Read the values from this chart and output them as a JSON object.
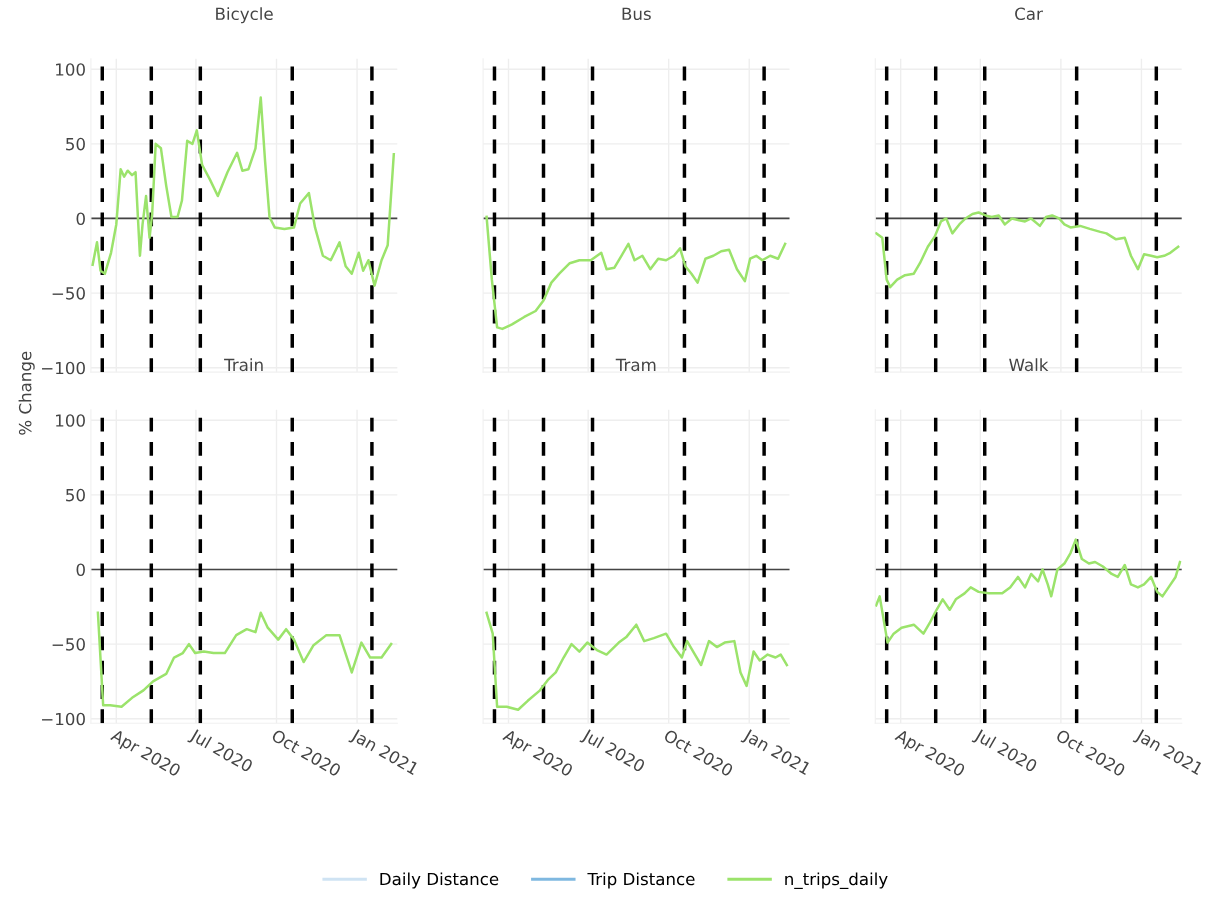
{
  "chart_data": [
    {
      "type": "line",
      "title": "Bicycle",
      "ylabel": "% Change",
      "xlim": [
        "2020-03-03",
        "2021-02-16"
      ],
      "ylim": [
        -103,
        107
      ],
      "xticks": [
        {
          "value": "2020-04-01",
          "label": null
        },
        {
          "value": "2020-07-01",
          "label": null
        },
        {
          "value": "2020-10-01",
          "label": null
        },
        {
          "value": "2021-01-01",
          "label": null
        }
      ],
      "yticks": [
        -100,
        -50,
        0,
        50,
        100
      ],
      "tick_labels": "y",
      "grid": true,
      "legend": "bottom",
      "line_style": "solid",
      "marker": "none",
      "ref_lines": [
        {
          "axis": "y",
          "value": 0,
          "color": "#444444",
          "line_style": "solid"
        },
        {
          "axis": "x",
          "value": "2020-03-16",
          "color": "#000000",
          "line_style": "dashed"
        },
        {
          "axis": "x",
          "value": "2020-05-11",
          "color": "#000000",
          "line_style": "dashed"
        },
        {
          "axis": "x",
          "value": "2020-07-06",
          "color": "#000000",
          "line_style": "dashed"
        },
        {
          "axis": "x",
          "value": "2020-10-19",
          "color": "#000000",
          "line_style": "dashed"
        },
        {
          "axis": "x",
          "value": "2021-01-18",
          "color": "#000000",
          "line_style": "dashed"
        }
      ],
      "series": [
        {
          "name": "Daily Distance",
          "color": "#cfe3f3"
        },
        {
          "name": "Trip Distance",
          "color": "#7fb8e0"
        },
        {
          "name": "n_trips_daily",
          "color": "#9be36b",
          "x": [
            "2020-03-05",
            "2020-03-10",
            "2020-03-14",
            "2020-03-19",
            "2020-03-26",
            "2020-04-01",
            "2020-04-06",
            "2020-04-10",
            "2020-04-14",
            "2020-04-19",
            "2020-04-23",
            "2020-04-28",
            "2020-05-01",
            "2020-05-05",
            "2020-05-09",
            "2020-05-12",
            "2020-05-16",
            "2020-05-22",
            "2020-05-28",
            "2020-06-03",
            "2020-06-10",
            "2020-06-15",
            "2020-06-21",
            "2020-06-27",
            "2020-07-02",
            "2020-07-08",
            "2020-07-17",
            "2020-07-26",
            "2020-08-06",
            "2020-08-17",
            "2020-08-23",
            "2020-08-30",
            "2020-09-07",
            "2020-09-13",
            "2020-09-18",
            "2020-09-23",
            "2020-09-29",
            "2020-10-10",
            "2020-10-21",
            "2020-10-28",
            "2020-11-07",
            "2020-11-14",
            "2020-11-23",
            "2020-12-02",
            "2020-12-12",
            "2020-12-19",
            "2020-12-26",
            "2021-01-03",
            "2021-01-08",
            "2021-01-14",
            "2021-01-21",
            "2021-01-29",
            "2021-02-05",
            "2021-02-12"
          ],
          "values": [
            -31,
            -16,
            -35,
            -37,
            -23,
            -4,
            33,
            28,
            32,
            29,
            31,
            -25,
            -4,
            15,
            -13,
            3,
            50,
            47,
            22,
            1,
            1,
            12,
            52,
            50,
            59,
            36,
            26,
            15,
            31,
            44,
            32,
            33,
            47,
            81,
            38,
            1,
            -6,
            -7,
            -6,
            10,
            17,
            -6,
            -25,
            -28,
            -16,
            -32,
            -37,
            -23,
            -35,
            -28,
            -45,
            -28,
            -18,
            43
          ]
        }
      ]
    },
    {
      "type": "line",
      "title": "Bus",
      "xlim": [
        "2020-03-03",
        "2021-02-16"
      ],
      "ylim": [
        -103,
        107
      ],
      "xticks": [
        {
          "value": "2020-04-01",
          "label": null
        },
        {
          "value": "2020-07-01",
          "label": null
        },
        {
          "value": "2020-10-01",
          "label": null
        },
        {
          "value": "2021-01-01",
          "label": null
        }
      ],
      "yticks": [
        {
          "value": -100,
          "label": null
        },
        {
          "value": -50,
          "label": null
        },
        {
          "value": 0,
          "label": null
        },
        {
          "value": 50,
          "label": null
        },
        {
          "value": 100,
          "label": null
        }
      ],
      "tick_labels": false,
      "grid": true,
      "line_style": "solid",
      "marker": "none",
      "ref_lines": [
        {
          "axis": "y",
          "value": 0,
          "color": "#444444",
          "line_style": "solid"
        },
        {
          "axis": "x",
          "value": "2020-03-16",
          "color": "#000000",
          "line_style": "dashed"
        },
        {
          "axis": "x",
          "value": "2020-05-11",
          "color": "#000000",
          "line_style": "dashed"
        },
        {
          "axis": "x",
          "value": "2020-07-06",
          "color": "#000000",
          "line_style": "dashed"
        },
        {
          "axis": "x",
          "value": "2020-10-19",
          "color": "#000000",
          "line_style": "dashed"
        },
        {
          "axis": "x",
          "value": "2021-01-18",
          "color": "#000000",
          "line_style": "dashed"
        }
      ],
      "series": [
        {
          "color": "#9be36b",
          "x": [
            "2020-03-07",
            "2020-03-13",
            "2020-03-19",
            "2020-03-25",
            "2020-04-05",
            "2020-04-19",
            "2020-05-02",
            "2020-05-11",
            "2020-05-20",
            "2020-05-29",
            "2020-06-10",
            "2020-06-21",
            "2020-07-04",
            "2020-07-16",
            "2020-07-22",
            "2020-07-31",
            "2020-08-08",
            "2020-08-16",
            "2020-08-23",
            "2020-09-01",
            "2020-09-10",
            "2020-09-19",
            "2020-09-28",
            "2020-10-07",
            "2020-10-14",
            "2020-10-20",
            "2020-10-27",
            "2020-11-03",
            "2020-11-12",
            "2020-11-21",
            "2020-11-30",
            "2020-12-09",
            "2020-12-18",
            "2020-12-27",
            "2021-01-02",
            "2021-01-09",
            "2021-01-16",
            "2021-01-25",
            "2021-02-03",
            "2021-02-11"
          ],
          "values": [
            1,
            -41,
            -73,
            -74,
            -71,
            -66,
            -62,
            -55,
            -43,
            -37,
            -30,
            -28,
            -28,
            -23,
            -34,
            -33,
            -25,
            -17,
            -28,
            -25,
            -34,
            -27,
            -28,
            -25,
            -20,
            -32,
            -37,
            -43,
            -27,
            -25,
            -22,
            -21,
            -34,
            -42,
            -27,
            -25,
            -28,
            -25,
            -27,
            -17
          ]
        }
      ]
    },
    {
      "type": "line",
      "title": "Car",
      "xlim": [
        "2020-03-03",
        "2021-02-16"
      ],
      "ylim": [
        -103,
        107
      ],
      "xticks": [
        {
          "value": "2020-04-01",
          "label": null
        },
        {
          "value": "2020-07-01",
          "label": null
        },
        {
          "value": "2020-10-01",
          "label": null
        },
        {
          "value": "2021-01-01",
          "label": null
        }
      ],
      "yticks": [
        {
          "value": -100,
          "label": null
        },
        {
          "value": -50,
          "label": null
        },
        {
          "value": 0,
          "label": null
        },
        {
          "value": 50,
          "label": null
        },
        {
          "value": 100,
          "label": null
        }
      ],
      "tick_labels": false,
      "grid": true,
      "line_style": "solid",
      "marker": "none",
      "ref_lines": [
        {
          "axis": "y",
          "value": 0,
          "color": "#444444",
          "line_style": "solid"
        },
        {
          "axis": "x",
          "value": "2020-03-16",
          "color": "#000000",
          "line_style": "dashed"
        },
        {
          "axis": "x",
          "value": "2020-05-11",
          "color": "#000000",
          "line_style": "dashed"
        },
        {
          "axis": "x",
          "value": "2020-07-06",
          "color": "#000000",
          "line_style": "dashed"
        },
        {
          "axis": "x",
          "value": "2020-10-19",
          "color": "#000000",
          "line_style": "dashed"
        },
        {
          "axis": "x",
          "value": "2021-01-18",
          "color": "#000000",
          "line_style": "dashed"
        }
      ],
      "series": [
        {
          "color": "#9be36b",
          "x": [
            "2020-03-04",
            "2020-03-11",
            "2020-03-16",
            "2020-03-20",
            "2020-03-28",
            "2020-04-06",
            "2020-04-16",
            "2020-04-23",
            "2020-05-02",
            "2020-05-10",
            "2020-05-17",
            "2020-05-23",
            "2020-05-30",
            "2020-06-07",
            "2020-06-14",
            "2020-06-22",
            "2020-06-29",
            "2020-07-07",
            "2020-07-14",
            "2020-07-22",
            "2020-07-29",
            "2020-08-06",
            "2020-08-13",
            "2020-08-21",
            "2020-08-28",
            "2020-09-07",
            "2020-09-14",
            "2020-09-21",
            "2020-09-29",
            "2020-10-05",
            "2020-10-12",
            "2020-10-23",
            "2020-11-03",
            "2020-11-15",
            "2020-11-22",
            "2020-12-03",
            "2020-12-13",
            "2020-12-20",
            "2020-12-28",
            "2021-01-04",
            "2021-01-12",
            "2021-01-19",
            "2021-01-27",
            "2021-02-03",
            "2021-02-12"
          ],
          "values": [
            -10,
            -13,
            -41,
            -46,
            -41,
            -38,
            -37,
            -30,
            -19,
            -12,
            -2,
            0,
            -10,
            -4,
            0,
            3,
            4,
            2,
            1,
            2,
            -4,
            0,
            -1,
            -2,
            0,
            -5,
            1,
            2,
            0,
            -4,
            -6,
            -5,
            -7,
            -9,
            -10,
            -14,
            -13,
            -25,
            -34,
            -24,
            -25,
            -26,
            -25,
            -23,
            -19
          ]
        }
      ]
    },
    {
      "type": "line",
      "title": "Train",
      "xlim": [
        "2020-03-03",
        "2021-02-16"
      ],
      "ylim": [
        -103,
        107
      ],
      "xticks": [
        {
          "value": "2020-04-01",
          "label": "Apr 2020"
        },
        {
          "value": "2020-07-01",
          "label": "Jul 2020"
        },
        {
          "value": "2020-10-01",
          "label": "Oct 2020"
        },
        {
          "value": "2021-01-01",
          "label": "Jan 2021"
        }
      ],
      "yticks": [
        -100,
        -50,
        0,
        50,
        100
      ],
      "grid": true,
      "line_style": "solid",
      "marker": "none",
      "ref_lines": [
        {
          "axis": "y",
          "value": 0,
          "color": "#444444",
          "line_style": "solid"
        },
        {
          "axis": "x",
          "value": "2020-03-16",
          "color": "#000000",
          "line_style": "dashed"
        },
        {
          "axis": "x",
          "value": "2020-05-11",
          "color": "#000000",
          "line_style": "dashed"
        },
        {
          "axis": "x",
          "value": "2020-07-06",
          "color": "#000000",
          "line_style": "dashed"
        },
        {
          "axis": "x",
          "value": "2020-10-19",
          "color": "#000000",
          "line_style": "dashed"
        },
        {
          "axis": "x",
          "value": "2021-01-18",
          "color": "#000000",
          "line_style": "dashed"
        }
      ],
      "series": [
        {
          "color": "#9be36b",
          "x": [
            "2020-03-11",
            "2020-03-17",
            "2020-03-25",
            "2020-04-07",
            "2020-04-19",
            "2020-05-02",
            "2020-05-13",
            "2020-05-28",
            "2020-06-06",
            "2020-06-16",
            "2020-06-23",
            "2020-06-30",
            "2020-07-10",
            "2020-07-21",
            "2020-08-03",
            "2020-08-16",
            "2020-08-28",
            "2020-09-07",
            "2020-09-13",
            "2020-09-21",
            "2020-10-03",
            "2020-10-12",
            "2020-10-21",
            "2020-11-01",
            "2020-11-12",
            "2020-11-27",
            "2020-12-12",
            "2020-12-26",
            "2021-01-06",
            "2021-01-16",
            "2021-01-29",
            "2021-02-09"
          ],
          "values": [
            -29,
            -91,
            -91,
            -92,
            -86,
            -81,
            -75,
            -70,
            -59,
            -56,
            -50,
            -56,
            -55,
            -56,
            -56,
            -44,
            -40,
            -42,
            -29,
            -39,
            -47,
            -40,
            -47,
            -62,
            -51,
            -44,
            -44,
            -69,
            -49,
            -59,
            -59,
            -50
          ]
        }
      ]
    },
    {
      "type": "line",
      "title": "Tram",
      "xlim": [
        "2020-03-03",
        "2021-02-16"
      ],
      "ylim": [
        -103,
        107
      ],
      "xticks": [
        {
          "value": "2020-04-01",
          "label": "Apr 2020"
        },
        {
          "value": "2020-07-01",
          "label": "Jul 2020"
        },
        {
          "value": "2020-10-01",
          "label": "Oct 2020"
        },
        {
          "value": "2021-01-01",
          "label": "Jan 2021"
        }
      ],
      "yticks": [
        {
          "value": -100,
          "label": null
        },
        {
          "value": -50,
          "label": null
        },
        {
          "value": 0,
          "label": null
        },
        {
          "value": 50,
          "label": null
        },
        {
          "value": 100,
          "label": null
        }
      ],
      "tick_labels": "x",
      "grid": true,
      "line_style": "solid",
      "marker": "none",
      "ref_lines": [
        {
          "axis": "y",
          "value": 0,
          "color": "#444444",
          "line_style": "solid"
        },
        {
          "axis": "x",
          "value": "2020-03-16",
          "color": "#000000",
          "line_style": "dashed"
        },
        {
          "axis": "x",
          "value": "2020-05-11",
          "color": "#000000",
          "line_style": "dashed"
        },
        {
          "axis": "x",
          "value": "2020-07-06",
          "color": "#000000",
          "line_style": "dashed"
        },
        {
          "axis": "x",
          "value": "2020-10-19",
          "color": "#000000",
          "line_style": "dashed"
        },
        {
          "axis": "x",
          "value": "2021-01-18",
          "color": "#000000",
          "line_style": "dashed"
        }
      ],
      "series": [
        {
          "color": "#9be36b",
          "x": [
            "2020-03-07",
            "2020-03-14",
            "2020-03-19",
            "2020-03-30",
            "2020-04-12",
            "2020-04-23",
            "2020-05-07",
            "2020-05-16",
            "2020-05-25",
            "2020-06-03",
            "2020-06-12",
            "2020-06-21",
            "2020-06-30",
            "2020-07-11",
            "2020-07-22",
            "2020-08-05",
            "2020-08-14",
            "2020-08-25",
            "2020-09-03",
            "2020-09-14",
            "2020-09-28",
            "2020-10-07",
            "2020-10-16",
            "2020-10-22",
            "2020-10-31",
            "2020-11-07",
            "2020-11-16",
            "2020-11-25",
            "2020-12-04",
            "2020-12-15",
            "2020-12-22",
            "2020-12-29",
            "2021-01-06",
            "2021-01-13",
            "2021-01-22",
            "2021-01-31",
            "2021-02-06",
            "2021-02-13"
          ],
          "values": [
            -29,
            -43,
            -92,
            -92,
            -94,
            -88,
            -81,
            -74,
            -69,
            -59,
            -50,
            -55,
            -49,
            -54,
            -57,
            -49,
            -45,
            -37,
            -48,
            -46,
            -43,
            -52,
            -59,
            -48,
            -57,
            -64,
            -48,
            -52,
            -49,
            -48,
            -69,
            -78,
            -55,
            -61,
            -57,
            -59,
            -57,
            -64
          ]
        }
      ]
    },
    {
      "type": "line",
      "title": "Walk",
      "xlim": [
        "2020-03-03",
        "2021-02-16"
      ],
      "ylim": [
        -103,
        107
      ],
      "xticks": [
        {
          "value": "2020-04-01",
          "label": "Apr 2020"
        },
        {
          "value": "2020-07-01",
          "label": "Jul 2020"
        },
        {
          "value": "2020-10-01",
          "label": "Oct 2020"
        },
        {
          "value": "2021-01-01",
          "label": "Jan 2021"
        }
      ],
      "yticks": [
        {
          "value": -100,
          "label": null
        },
        {
          "value": -50,
          "label": null
        },
        {
          "value": 0,
          "label": null
        },
        {
          "value": 50,
          "label": null
        },
        {
          "value": 100,
          "label": null
        }
      ],
      "tick_labels": "x",
      "grid": true,
      "line_style": "solid",
      "marker": "none",
      "ref_lines": [
        {
          "axis": "y",
          "value": 0,
          "color": "#444444",
          "line_style": "solid"
        },
        {
          "axis": "x",
          "value": "2020-03-16",
          "color": "#000000",
          "line_style": "dashed"
        },
        {
          "axis": "x",
          "value": "2020-05-11",
          "color": "#000000",
          "line_style": "dashed"
        },
        {
          "axis": "x",
          "value": "2020-07-06",
          "color": "#000000",
          "line_style": "dashed"
        },
        {
          "axis": "x",
          "value": "2020-10-19",
          "color": "#000000",
          "line_style": "dashed"
        },
        {
          "axis": "x",
          "value": "2021-01-18",
          "color": "#000000",
          "line_style": "dashed"
        }
      ],
      "series": [
        {
          "color": "#9be36b",
          "x": [
            "2020-03-04",
            "2020-03-08",
            "2020-03-17",
            "2020-03-24",
            "2020-04-02",
            "2020-04-16",
            "2020-04-27",
            "2020-05-04",
            "2020-05-12",
            "2020-05-19",
            "2020-05-27",
            "2020-06-03",
            "2020-06-13",
            "2020-06-20",
            "2020-06-29",
            "2020-07-11",
            "2020-07-26",
            "2020-08-04",
            "2020-08-13",
            "2020-08-21",
            "2020-08-28",
            "2020-09-05",
            "2020-09-10",
            "2020-09-16",
            "2020-09-20",
            "2020-09-27",
            "2020-10-05",
            "2020-10-12",
            "2020-10-18",
            "2020-10-25",
            "2020-11-02",
            "2020-11-09",
            "2020-11-18",
            "2020-11-28",
            "2020-12-05",
            "2020-12-13",
            "2020-12-20",
            "2020-12-28",
            "2021-01-04",
            "2021-01-12",
            "2021-01-19",
            "2021-01-25",
            "2021-02-01",
            "2021-02-09",
            "2021-02-14"
          ],
          "values": [
            -24,
            -18,
            -49,
            -43,
            -39,
            -37,
            -43,
            -36,
            -27,
            -20,
            -27,
            -20,
            -16,
            -12,
            -15,
            -16,
            -16,
            -12,
            -5,
            -12,
            -3,
            -8,
            0,
            -10,
            -18,
            0,
            4,
            11,
            20,
            7,
            4,
            5,
            2,
            -3,
            -5,
            3,
            -10,
            -12,
            -10,
            -5,
            -15,
            -18,
            -12,
            -5,
            5
          ]
        }
      ]
    }
  ]
}
